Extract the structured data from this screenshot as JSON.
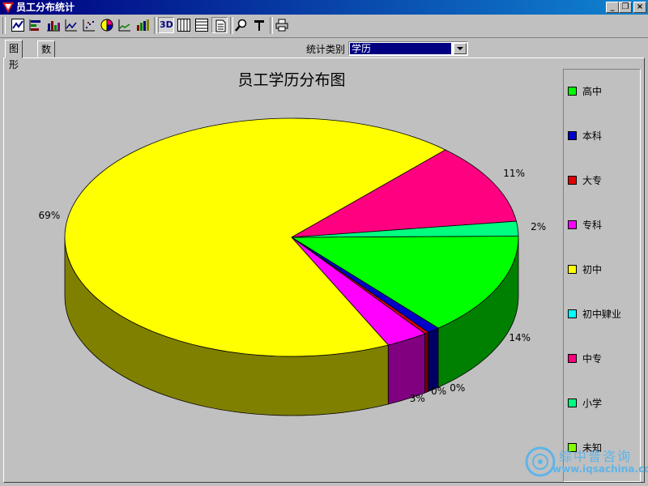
{
  "window": {
    "title": "员工分布统计",
    "controls": [
      "_",
      "❐",
      "×"
    ]
  },
  "toolbar": {
    "icons": [
      "line-chart-icon",
      "horizontal-bar-icon",
      "bar-chart-icon",
      "area-line-icon",
      "scatter-icon",
      "pie-chart-icon",
      "step-line-icon",
      "bar3d-chart-icon",
      "3d-toggle-icon",
      "grid-vertical-icon",
      "grid-horizontal-icon",
      "page-icon",
      "zoom-icon",
      "font-icon",
      "print-icon"
    ],
    "toggle_3d_label": "3D"
  },
  "tabs": [
    {
      "label": "图形",
      "active": true
    },
    {
      "label": "数据",
      "active": false
    }
  ],
  "category": {
    "label": "统计类别",
    "value": "学历"
  },
  "chart_data": {
    "type": "pie",
    "title": "员工学历分布图",
    "three_d": true,
    "legend_position": "right",
    "slices": [
      {
        "name": "高中",
        "value": 14,
        "label": "14%",
        "color": "#00ff00"
      },
      {
        "name": "本科",
        "value": 0.9,
        "label": "",
        "color": "#0000c8"
      },
      {
        "name": "大专",
        "value": 0.3,
        "label": "0%",
        "color": "#e00000"
      },
      {
        "name": "专科",
        "value": 3,
        "label": "3%",
        "color": "#ff00ff"
      },
      {
        "name": "初中",
        "value": 69,
        "label": "69%",
        "color": "#ffff00"
      },
      {
        "name": "初中肄业",
        "value": 0,
        "label": "",
        "color": "#00ffff"
      },
      {
        "name": "中专",
        "value": 11,
        "label": "11%",
        "color": "#ff0080"
      },
      {
        "name": "小学",
        "value": 2,
        "label": "2%",
        "color": "#00ff80"
      },
      {
        "name": "未知",
        "value": 0,
        "label": "",
        "color": "#80ff00"
      }
    ],
    "extra_labels": [
      {
        "text": "0%"
      }
    ]
  },
  "watermark": {
    "text": "综中普咨询",
    "url": "www.iqsachina.com"
  }
}
